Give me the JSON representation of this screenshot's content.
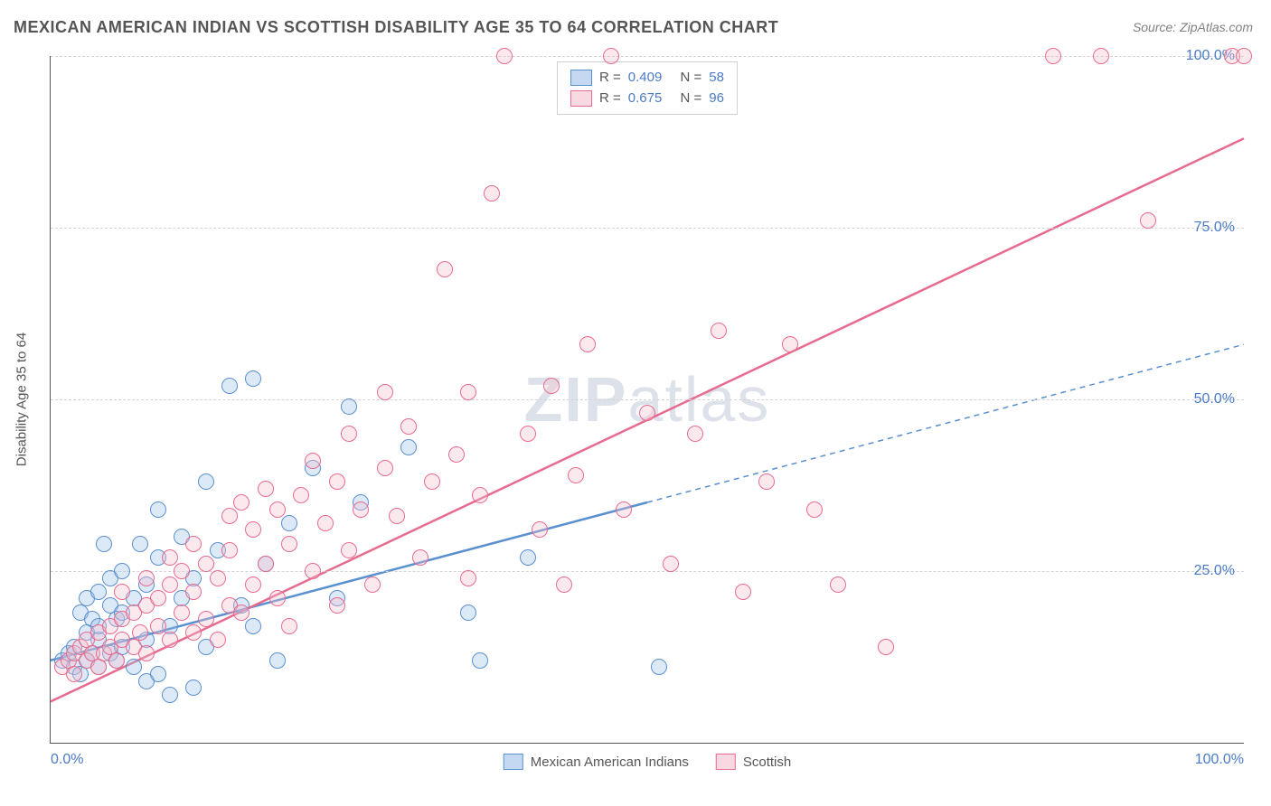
{
  "title": "MEXICAN AMERICAN INDIAN VS SCOTTISH DISABILITY AGE 35 TO 64 CORRELATION CHART",
  "source": "Source: ZipAtlas.com",
  "watermark": {
    "bold": "ZIP",
    "rest": "atlas"
  },
  "chart": {
    "type": "scatter",
    "background_color": "#ffffff",
    "grid_color": "#d4d4d4",
    "axis_color": "#555555",
    "xlim": [
      0,
      100
    ],
    "ylim": [
      0,
      100
    ],
    "x_ticks": [
      0,
      100
    ],
    "x_tick_labels": [
      "0.0%",
      "100.0%"
    ],
    "y_ticks": [
      25,
      50,
      75,
      100
    ],
    "y_tick_labels": [
      "25.0%",
      "50.0%",
      "75.0%",
      "100.0%"
    ],
    "y_axis_title": "Disability Age 35 to 64",
    "marker_radius": 9,
    "marker_stroke_width": 1.5,
    "marker_fill_opacity": 0.35,
    "line_width_solid": 2.5,
    "line_width_dashed": 1.5,
    "dash_pattern": "6,5",
    "tick_label_color": "#4a7ac7",
    "tick_label_fontsize": 16,
    "title_fontsize": 18,
    "title_color": "#555555"
  },
  "series": [
    {
      "id": "mai",
      "label": "Mexican American Indians",
      "fill_color": "#9cc0e7",
      "stroke_color": "#5a8fd0",
      "R": "0.409",
      "N": "58",
      "trend": {
        "solid": {
          "x1": 0,
          "y1": 12,
          "x2": 50,
          "y2": 35
        },
        "dashed": {
          "x1": 50,
          "y1": 35,
          "x2": 100,
          "y2": 58
        }
      },
      "points": [
        [
          1,
          12
        ],
        [
          1.5,
          13
        ],
        [
          2,
          11
        ],
        [
          2,
          14
        ],
        [
          2.5,
          19
        ],
        [
          2.5,
          10
        ],
        [
          3,
          12
        ],
        [
          3,
          16
        ],
        [
          3,
          21
        ],
        [
          3.5,
          13
        ],
        [
          3.5,
          18
        ],
        [
          4,
          11
        ],
        [
          4,
          15
        ],
        [
          4,
          17
        ],
        [
          4,
          22
        ],
        [
          4.5,
          29
        ],
        [
          5,
          13
        ],
        [
          5,
          20
        ],
        [
          5,
          24
        ],
        [
          5.5,
          12
        ],
        [
          5.5,
          18
        ],
        [
          6,
          14
        ],
        [
          6,
          19
        ],
        [
          6,
          25
        ],
        [
          7,
          11
        ],
        [
          7,
          21
        ],
        [
          7.5,
          29
        ],
        [
          8,
          15
        ],
        [
          8,
          9
        ],
        [
          8,
          23
        ],
        [
          9,
          10
        ],
        [
          9,
          27
        ],
        [
          9,
          34
        ],
        [
          10,
          7
        ],
        [
          10,
          17
        ],
        [
          11,
          21
        ],
        [
          11,
          30
        ],
        [
          12,
          8
        ],
        [
          12,
          24
        ],
        [
          13,
          38
        ],
        [
          13,
          14
        ],
        [
          14,
          28
        ],
        [
          15,
          52
        ],
        [
          16,
          20
        ],
        [
          17,
          53
        ],
        [
          17,
          17
        ],
        [
          18,
          26
        ],
        [
          19,
          12
        ],
        [
          20,
          32
        ],
        [
          22,
          40
        ],
        [
          24,
          21
        ],
        [
          25,
          49
        ],
        [
          26,
          35
        ],
        [
          30,
          43
        ],
        [
          35,
          19
        ],
        [
          36,
          12
        ],
        [
          40,
          27
        ],
        [
          51,
          11
        ]
      ]
    },
    {
      "id": "sco",
      "label": "Scottish",
      "fill_color": "#f4c0ce",
      "stroke_color": "#e76b8f",
      "R": "0.675",
      "N": "96",
      "trend": {
        "solid": {
          "x1": 0,
          "y1": 6,
          "x2": 100,
          "y2": 88
        },
        "dashed": null
      },
      "points": [
        [
          1,
          11
        ],
        [
          1.5,
          12
        ],
        [
          2,
          13
        ],
        [
          2,
          10
        ],
        [
          2.5,
          14
        ],
        [
          3,
          12
        ],
        [
          3,
          15
        ],
        [
          3.5,
          13
        ],
        [
          4,
          11
        ],
        [
          4,
          16
        ],
        [
          4.5,
          13
        ],
        [
          5,
          14
        ],
        [
          5,
          17
        ],
        [
          5.5,
          12
        ],
        [
          6,
          15
        ],
        [
          6,
          18
        ],
        [
          6,
          22
        ],
        [
          7,
          14
        ],
        [
          7,
          19
        ],
        [
          7.5,
          16
        ],
        [
          8,
          13
        ],
        [
          8,
          20
        ],
        [
          8,
          24
        ],
        [
          9,
          17
        ],
        [
          9,
          21
        ],
        [
          10,
          15
        ],
        [
          10,
          23
        ],
        [
          10,
          27
        ],
        [
          11,
          19
        ],
        [
          11,
          25
        ],
        [
          12,
          16
        ],
        [
          12,
          22
        ],
        [
          12,
          29
        ],
        [
          13,
          18
        ],
        [
          13,
          26
        ],
        [
          14,
          15
        ],
        [
          14,
          24
        ],
        [
          15,
          20
        ],
        [
          15,
          28
        ],
        [
          15,
          33
        ],
        [
          16,
          19
        ],
        [
          16,
          35
        ],
        [
          17,
          23
        ],
        [
          17,
          31
        ],
        [
          18,
          26
        ],
        [
          18,
          37
        ],
        [
          19,
          21
        ],
        [
          19,
          34
        ],
        [
          20,
          17
        ],
        [
          20,
          29
        ],
        [
          21,
          36
        ],
        [
          22,
          25
        ],
        [
          22,
          41
        ],
        [
          23,
          32
        ],
        [
          24,
          20
        ],
        [
          24,
          38
        ],
        [
          25,
          28
        ],
        [
          25,
          45
        ],
        [
          26,
          34
        ],
        [
          27,
          23
        ],
        [
          28,
          40
        ],
        [
          28,
          51
        ],
        [
          29,
          33
        ],
        [
          30,
          46
        ],
        [
          31,
          27
        ],
        [
          32,
          38
        ],
        [
          33,
          69
        ],
        [
          34,
          42
        ],
        [
          35,
          24
        ],
        [
          35,
          51
        ],
        [
          36,
          36
        ],
        [
          37,
          80
        ],
        [
          38,
          100
        ],
        [
          40,
          45
        ],
        [
          41,
          31
        ],
        [
          42,
          52
        ],
        [
          43,
          23
        ],
        [
          44,
          39
        ],
        [
          45,
          58
        ],
        [
          47,
          100
        ],
        [
          48,
          34
        ],
        [
          50,
          48
        ],
        [
          52,
          26
        ],
        [
          54,
          45
        ],
        [
          56,
          60
        ],
        [
          58,
          22
        ],
        [
          60,
          38
        ],
        [
          62,
          58
        ],
        [
          64,
          34
        ],
        [
          66,
          23
        ],
        [
          70,
          14
        ],
        [
          84,
          100
        ],
        [
          88,
          100
        ],
        [
          92,
          76
        ],
        [
          99,
          100
        ],
        [
          100,
          100
        ]
      ]
    }
  ],
  "legend_top_labels": {
    "r_prefix": "R =",
    "n_prefix": "N ="
  },
  "legend_bottom": [
    {
      "series": "mai"
    },
    {
      "series": "sco"
    }
  ]
}
